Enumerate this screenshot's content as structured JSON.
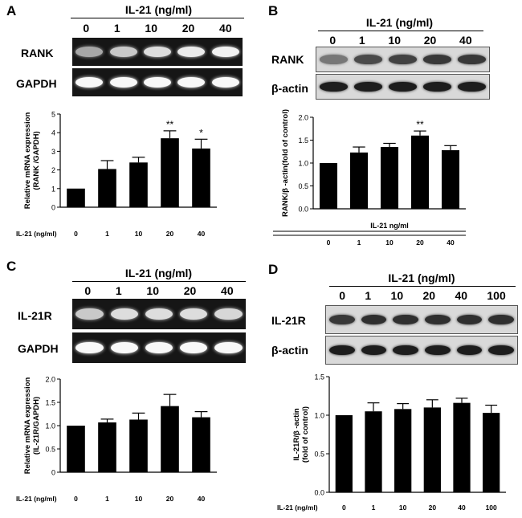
{
  "panels": [
    {
      "id": "A",
      "label": "A",
      "header": "IL-21 (ng/ml)",
      "lanes": [
        "0",
        "1",
        "10",
        "20",
        "40"
      ],
      "blot_type": "gel",
      "rows": [
        {
          "label": "RANK",
          "intensities": [
            0.35,
            0.6,
            0.75,
            0.85,
            0.9
          ]
        },
        {
          "label": "GAPDH",
          "intensities": [
            0.95,
            0.95,
            0.95,
            0.95,
            0.95
          ]
        }
      ]
    },
    {
      "id": "B",
      "label": "B",
      "header": "IL-21 (ng/ml)",
      "lanes": [
        "0",
        "1",
        "10",
        "20",
        "40"
      ],
      "blot_type": "wb",
      "rows": [
        {
          "label": "RANK",
          "intensities": [
            0.45,
            0.7,
            0.75,
            0.8,
            0.8
          ]
        },
        {
          "label": "β-actin",
          "intensities": [
            0.95,
            0.95,
            0.95,
            0.95,
            0.95
          ]
        }
      ]
    },
    {
      "id": "C",
      "label": "C",
      "header": "IL-21 (ng/ml)",
      "lanes": [
        "0",
        "1",
        "10",
        "20",
        "40"
      ],
      "blot_type": "gel",
      "rows": [
        {
          "label": "IL-21R",
          "intensities": [
            0.6,
            0.75,
            0.75,
            0.75,
            0.7
          ]
        },
        {
          "label": "GAPDH",
          "intensities": [
            0.95,
            0.95,
            0.95,
            0.95,
            0.95
          ]
        }
      ]
    },
    {
      "id": "D",
      "label": "D",
      "header": "IL-21 (ng/ml)",
      "lanes": [
        "0",
        "1",
        "10",
        "20",
        "40",
        "100"
      ],
      "blot_type": "wb",
      "rows": [
        {
          "label": "IL-21R",
          "intensities": [
            0.8,
            0.85,
            0.85,
            0.85,
            0.85,
            0.85
          ]
        },
        {
          "label": "β-actin",
          "intensities": [
            0.95,
            0.95,
            0.95,
            0.95,
            0.95,
            0.95
          ]
        }
      ]
    }
  ],
  "chart_data": [
    {
      "panel": "A",
      "type": "bar",
      "categories": [
        "0",
        "1",
        "10",
        "20",
        "40"
      ],
      "values": [
        1.0,
        2.05,
        2.4,
        3.7,
        3.15
      ],
      "errors": [
        0,
        0.45,
        0.28,
        0.4,
        0.5
      ],
      "annotations": [
        "",
        "",
        "",
        "**",
        "*"
      ],
      "ylabel_lines": [
        "Relative mRNA expression",
        "(RANK /GAPDH)"
      ],
      "xlabel": "",
      "x_prefix": "IL-21 (ng/ml)",
      "ylim": [
        0,
        5
      ],
      "yticks": [
        "0",
        "1",
        "2",
        "3",
        "4",
        "5"
      ],
      "ytick_values": [
        0,
        1,
        2,
        3,
        4,
        5
      ],
      "grid": false
    },
    {
      "panel": "B",
      "type": "bar",
      "categories": [
        "0",
        "1",
        "10",
        "20",
        "40"
      ],
      "values": [
        1.0,
        1.23,
        1.35,
        1.6,
        1.28
      ],
      "errors": [
        0,
        0.12,
        0.08,
        0.1,
        0.1
      ],
      "annotations": [
        "",
        "",
        "",
        "**",
        ""
      ],
      "ylabel_lines": [
        "RANK/β -actin(fold of  control)"
      ],
      "xlabel": "IL-21 ng/ml",
      "x_prefix": "",
      "ylim": [
        0,
        2.0
      ],
      "yticks": [
        "0.0",
        "0.5",
        "1.0",
        "1.5",
        "2.0"
      ],
      "ytick_values": [
        0,
        0.5,
        1.0,
        1.5,
        2.0
      ],
      "grid": false
    },
    {
      "panel": "C",
      "type": "bar",
      "categories": [
        "0",
        "1",
        "10",
        "20",
        "40"
      ],
      "values": [
        1.0,
        1.07,
        1.13,
        1.42,
        1.18
      ],
      "errors": [
        0,
        0.07,
        0.14,
        0.25,
        0.12
      ],
      "annotations": [
        "",
        "",
        "",
        "",
        ""
      ],
      "ylabel_lines": [
        "Relative mRNA expression",
        "(IL-21R/GAPDH)"
      ],
      "xlabel": "",
      "x_prefix": "IL-21 (ng/ml)",
      "ylim": [
        0,
        2.0
      ],
      "yticks": [
        "0",
        "0.5",
        "1.0",
        "1.5",
        "2.0"
      ],
      "ytick_values": [
        0,
        0.5,
        1.0,
        1.5,
        2.0
      ],
      "grid": false
    },
    {
      "panel": "D",
      "type": "bar",
      "categories": [
        "0",
        "1",
        "10",
        "20",
        "40",
        "100"
      ],
      "values": [
        1.0,
        1.05,
        1.08,
        1.1,
        1.16,
        1.03
      ],
      "errors": [
        0,
        0.11,
        0.07,
        0.1,
        0.06,
        0.1
      ],
      "annotations": [
        "",
        "",
        "",
        "",
        "",
        ""
      ],
      "ylabel_lines": [
        "IL-21R/β -actin",
        "(fold of  control)"
      ],
      "xlabel": "",
      "x_prefix": "IL-21 (ng/ml)",
      "ylim": [
        0,
        1.5
      ],
      "yticks": [
        "0.0",
        "0.5",
        "1.0",
        "1.5"
      ],
      "ytick_values": [
        0,
        0.5,
        1.0,
        1.5
      ],
      "grid": false
    }
  ]
}
